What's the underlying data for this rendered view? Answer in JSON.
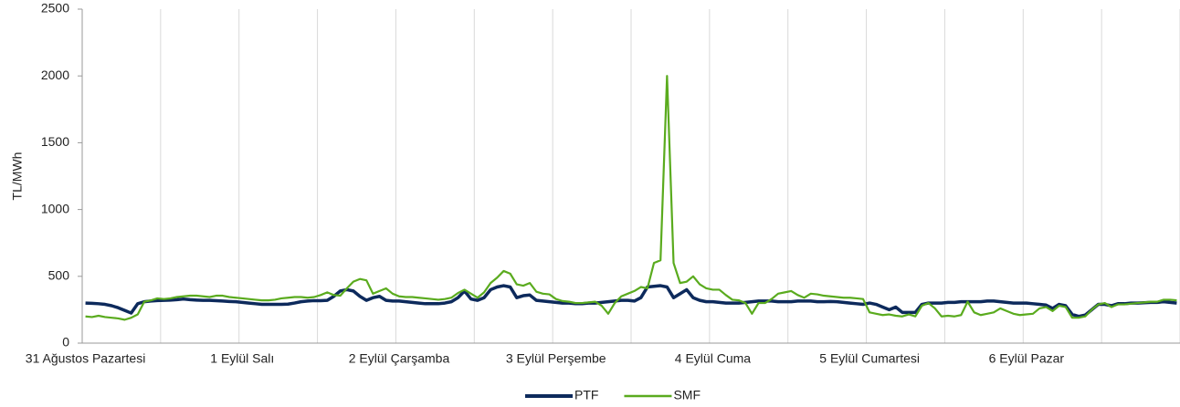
{
  "chart_data": {
    "type": "line",
    "y_label": "TL/MWh",
    "categories": [
      "31 Ağustos Pazartesi",
      null,
      null,
      null,
      null,
      null,
      null,
      null,
      null,
      null,
      null,
      null,
      null,
      null,
      null,
      null,
      null,
      null,
      null,
      null,
      null,
      null,
      null,
      null,
      "1 Eylül Salı",
      null,
      null,
      null,
      null,
      null,
      null,
      null,
      null,
      null,
      null,
      null,
      null,
      null,
      null,
      null,
      null,
      null,
      null,
      null,
      null,
      null,
      null,
      null,
      "2 Eylül Çarşamba",
      null,
      null,
      null,
      null,
      null,
      null,
      null,
      null,
      null,
      null,
      null,
      null,
      null,
      null,
      null,
      null,
      null,
      null,
      null,
      null,
      null,
      null,
      null,
      "3 Eylül Perşembe",
      null,
      null,
      null,
      null,
      null,
      null,
      null,
      null,
      null,
      null,
      null,
      null,
      null,
      null,
      null,
      null,
      null,
      null,
      null,
      null,
      null,
      null,
      null,
      "4 Eylül Cuma",
      null,
      null,
      null,
      null,
      null,
      null,
      null,
      null,
      null,
      null,
      null,
      null,
      null,
      null,
      null,
      null,
      null,
      null,
      null,
      null,
      null,
      null,
      null,
      "5 Eylül Cumartesi",
      null,
      null,
      null,
      null,
      null,
      null,
      null,
      null,
      null,
      null,
      null,
      null,
      null,
      null,
      null,
      null,
      null,
      null,
      null,
      null,
      null,
      null,
      null,
      "6 Eylül Pazar",
      null,
      null,
      null,
      null,
      null,
      null,
      null,
      null,
      null,
      null,
      null,
      null,
      null,
      null,
      null,
      null,
      null,
      null,
      null,
      null,
      null,
      null,
      null
    ],
    "series": [
      {
        "name": "PTF",
        "color": "#0d2a5c",
        "values": [
          300,
          298,
          295,
          290,
          280,
          265,
          245,
          225,
          295,
          310,
          315,
          318,
          320,
          322,
          325,
          330,
          325,
          322,
          320,
          320,
          318,
          315,
          312,
          310,
          305,
          300,
          295,
          290,
          290,
          290,
          290,
          292,
          300,
          310,
          315,
          318,
          318,
          320,
          350,
          390,
          400,
          390,
          350,
          320,
          340,
          350,
          320,
          315,
          315,
          310,
          305,
          300,
          295,
          295,
          295,
          300,
          310,
          340,
          390,
          330,
          320,
          340,
          400,
          420,
          430,
          420,
          340,
          355,
          360,
          320,
          315,
          310,
          305,
          300,
          300,
          295,
          295,
          300,
          300,
          305,
          310,
          315,
          320,
          320,
          315,
          340,
          420,
          425,
          430,
          420,
          340,
          370,
          400,
          340,
          320,
          310,
          310,
          305,
          300,
          300,
          300,
          305,
          310,
          315,
          315,
          315,
          310,
          310,
          310,
          315,
          315,
          315,
          310,
          310,
          312,
          310,
          305,
          300,
          295,
          290,
          300,
          290,
          270,
          250,
          270,
          230,
          230,
          230,
          290,
          300,
          300,
          300,
          305,
          305,
          310,
          310,
          310,
          310,
          315,
          315,
          310,
          305,
          300,
          300,
          300,
          295,
          290,
          285,
          260,
          290,
          280,
          215,
          200,
          210,
          250,
          290,
          290,
          280,
          295,
          295,
          300,
          300,
          302,
          305,
          305,
          310,
          305,
          300
        ]
      },
      {
        "name": "SMF",
        "color": "#5aab1e",
        "values": [
          200,
          195,
          205,
          195,
          190,
          185,
          175,
          190,
          215,
          310,
          320,
          335,
          330,
          335,
          345,
          350,
          355,
          355,
          350,
          345,
          355,
          355,
          345,
          340,
          335,
          330,
          325,
          320,
          320,
          325,
          335,
          340,
          345,
          345,
          340,
          345,
          360,
          380,
          360,
          355,
          410,
          460,
          480,
          470,
          370,
          390,
          410,
          370,
          350,
          345,
          345,
          340,
          335,
          330,
          325,
          330,
          340,
          375,
          400,
          370,
          340,
          380,
          450,
          490,
          540,
          520,
          440,
          430,
          450,
          385,
          370,
          365,
          330,
          315,
          310,
          300,
          300,
          305,
          310,
          280,
          220,
          300,
          350,
          370,
          390,
          420,
          410,
          600,
          620,
          2000,
          600,
          450,
          460,
          500,
          440,
          410,
          400,
          400,
          360,
          325,
          320,
          300,
          220,
          300,
          300,
          330,
          370,
          380,
          390,
          360,
          340,
          370,
          365,
          355,
          350,
          345,
          340,
          340,
          335,
          330,
          230,
          220,
          210,
          215,
          205,
          200,
          215,
          200,
          280,
          300,
          260,
          200,
          205,
          200,
          210,
          310,
          230,
          210,
          220,
          230,
          260,
          240,
          220,
          210,
          215,
          220,
          260,
          270,
          240,
          280,
          270,
          190,
          190,
          200,
          250,
          290,
          300,
          270,
          290,
          290,
          295,
          300,
          305,
          310,
          310,
          325,
          325,
          320
        ]
      }
    ],
    "ylim": [
      0,
      2500
    ],
    "yticks": [
      0,
      500,
      1000,
      1500,
      2000,
      2500
    ],
    "grid": true,
    "legend": "bottom"
  }
}
